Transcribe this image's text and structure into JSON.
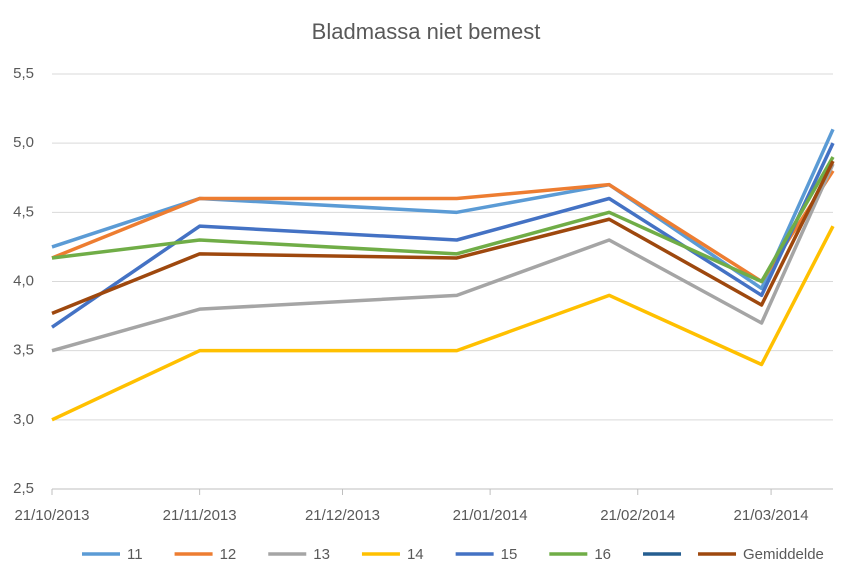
{
  "chart_data": {
    "type": "line",
    "title": "Bladmassa niet bemest",
    "x": [
      "2013-10-21",
      "2013-11-21",
      "2014-01-14",
      "2014-02-15",
      "2014-03-19",
      "2014-04-03"
    ],
    "xlim": [
      "2013-10-21",
      "2014-04-03"
    ],
    "xticks": [
      {
        "value": "2013-10-21",
        "label": "21/10/2013"
      },
      {
        "value": "2013-11-21",
        "label": "21/11/2013"
      },
      {
        "value": "2013-12-21",
        "label": "21/12/2013"
      },
      {
        "value": "2014-01-21",
        "label": "21/01/2014"
      },
      {
        "value": "2014-02-21",
        "label": "21/02/2014"
      },
      {
        "value": "2014-03-21",
        "label": "21/03/2014"
      }
    ],
    "ylim": [
      2.5,
      5.5
    ],
    "yticks": [
      {
        "value": 2.5,
        "label": "2,5"
      },
      {
        "value": 3.0,
        "label": "3,0"
      },
      {
        "value": 3.5,
        "label": "3,5"
      },
      {
        "value": 4.0,
        "label": "4,0"
      },
      {
        "value": 4.5,
        "label": "4,5"
      },
      {
        "value": 5.0,
        "label": "5,0"
      },
      {
        "value": 5.5,
        "label": "5,5"
      }
    ],
    "grid": true,
    "legend": "bottom",
    "series": [
      {
        "name": "11",
        "color": "#5b9bd5",
        "values": [
          4.25,
          4.6,
          4.5,
          4.7,
          3.95,
          5.1
        ]
      },
      {
        "name": "12",
        "color": "#ed7d31",
        "values": [
          4.17,
          4.6,
          4.6,
          4.7,
          4.0,
          4.8
        ]
      },
      {
        "name": "13",
        "color": "#a5a5a5",
        "values": [
          3.5,
          3.8,
          3.9,
          4.3,
          3.7,
          4.85
        ]
      },
      {
        "name": "14",
        "color": "#ffc000",
        "values": [
          3.0,
          3.5,
          3.5,
          3.9,
          3.4,
          4.4
        ]
      },
      {
        "name": "15",
        "color": "#4472c4",
        "values": [
          3.67,
          4.4,
          4.3,
          4.6,
          3.9,
          5.0
        ]
      },
      {
        "name": "16",
        "color": "#70ad47",
        "values": [
          4.17,
          4.3,
          4.2,
          4.5,
          4.0,
          4.9
        ]
      },
      {
        "name": null,
        "color": "#255e91",
        "values": [
          null,
          null,
          null,
          null,
          null,
          null
        ]
      },
      {
        "name": "Gemiddelde",
        "color": "#9e480e",
        "values": [
          3.77,
          4.2,
          4.17,
          4.45,
          3.83,
          4.87
        ]
      }
    ]
  }
}
